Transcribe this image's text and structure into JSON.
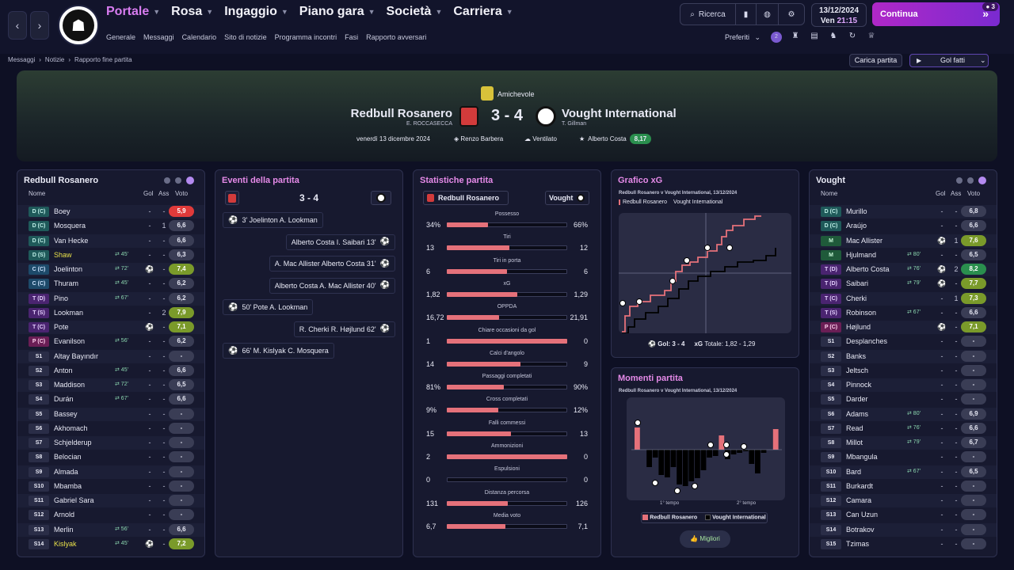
{
  "nav": {
    "main": [
      "Portale",
      "Rosa",
      "Ingaggio",
      "Piano gara",
      "Società",
      "Carriera"
    ],
    "sub": [
      "Generale",
      "Messaggi",
      "Calendario",
      "Sito di notizie",
      "Programma incontri",
      "Fasi",
      "Rapporto avversari"
    ],
    "search": "Ricerca",
    "date": "13/12/2024",
    "day": "Ven",
    "time": "21:15",
    "continue": "Continua",
    "badge": "3",
    "preferiti": "Preferiti",
    "notif": "2"
  },
  "breadcrumb": [
    "Messaggi",
    "Notizie",
    "Rapporto fine partita"
  ],
  "buttons": {
    "carica": "Carica partita",
    "gol": "Gol fatti"
  },
  "match": {
    "competition": "Amichevole",
    "home": "Redbull Rosanero",
    "home_manager": "E. ROCCASECCA",
    "score": "3 - 4",
    "away": "Vought International",
    "away_manager": "T. Gillman",
    "date": "venerdì 13 dicembre 2024",
    "stadium": "Renzo Barbera",
    "weather": "Ventilato",
    "potm": "Alberto Costa",
    "potm_rating": "8,17"
  },
  "home_panel": {
    "title": "Redbull Rosanero",
    "headers": [
      "Nome",
      "Gol",
      "Ass",
      "Voto"
    ],
    "players": [
      {
        "pos": "D (C)",
        "name": "Boey",
        "c1": "-",
        "c2": "-",
        "vote": "5,9",
        "vc": "red"
      },
      {
        "pos": "D (C)",
        "name": "Mosquera",
        "c1": "-",
        "c2": "1",
        "vote": "6,6",
        "vc": "grey"
      },
      {
        "pos": "D (C)",
        "name": "Van Hecke",
        "c1": "-",
        "c2": "-",
        "vote": "6,6",
        "vc": "grey"
      },
      {
        "pos": "D (S)",
        "name": "Shaw",
        "sub": "45'",
        "c1": "-",
        "c2": "-",
        "vote": "6,3",
        "vc": "grey",
        "yellow": true
      },
      {
        "pos": "C (C)",
        "name": "Joelinton",
        "sub": "72'",
        "c1": "⚽",
        "c2": "-",
        "vote": "7,4",
        "vc": "lgreen"
      },
      {
        "pos": "C (C)",
        "name": "Thuram",
        "sub": "45'",
        "c1": "-",
        "c2": "-",
        "vote": "6,2",
        "vc": "grey"
      },
      {
        "pos": "T (D)",
        "name": "Pino",
        "sub": "67'",
        "c1": "-",
        "c2": "-",
        "vote": "6,2",
        "vc": "grey"
      },
      {
        "pos": "T (S)",
        "name": "Lookman",
        "c1": "-",
        "c2": "2",
        "vote": "7,9",
        "vc": "lgreen"
      },
      {
        "pos": "T (C)",
        "name": "Pote",
        "c1": "⚽",
        "c2": "-",
        "vote": "7,1",
        "vc": "lgreen"
      },
      {
        "pos": "P (C)",
        "name": "Evanilson",
        "sub": "56'",
        "c1": "-",
        "c2": "-",
        "vote": "6,2",
        "vc": "grey"
      },
      {
        "pos": "S1",
        "name": "Altay Bayındır",
        "c1": "-",
        "c2": "-",
        "vote": "-",
        "vc": "grey"
      },
      {
        "pos": "S2",
        "name": "Anton",
        "sub": "45'",
        "c1": "-",
        "c2": "-",
        "vote": "6,6",
        "vc": "grey"
      },
      {
        "pos": "S3",
        "name": "Maddison",
        "sub": "72'",
        "c1": "-",
        "c2": "-",
        "vote": "6,5",
        "vc": "grey"
      },
      {
        "pos": "S4",
        "name": "Durán",
        "sub": "67'",
        "c1": "-",
        "c2": "-",
        "vote": "6,6",
        "vc": "grey"
      },
      {
        "pos": "S5",
        "name": "Bassey",
        "c1": "-",
        "c2": "-",
        "vote": "-",
        "vc": "grey"
      },
      {
        "pos": "S6",
        "name": "Akhomach",
        "c1": "-",
        "c2": "-",
        "vote": "-",
        "vc": "grey"
      },
      {
        "pos": "S7",
        "name": "Schjelderup",
        "c1": "-",
        "c2": "-",
        "vote": "-",
        "vc": "grey"
      },
      {
        "pos": "S8",
        "name": "Belocian",
        "c1": "-",
        "c2": "-",
        "vote": "-",
        "vc": "grey"
      },
      {
        "pos": "S9",
        "name": "Almada",
        "c1": "-",
        "c2": "-",
        "vote": "-",
        "vc": "grey"
      },
      {
        "pos": "S10",
        "name": "Mbamba",
        "c1": "-",
        "c2": "-",
        "vote": "-",
        "vc": "grey"
      },
      {
        "pos": "S11",
        "name": "Gabriel Sara",
        "c1": "-",
        "c2": "-",
        "vote": "-",
        "vc": "grey"
      },
      {
        "pos": "S12",
        "name": "Arnold",
        "c1": "-",
        "c2": "-",
        "vote": "-",
        "vc": "grey"
      },
      {
        "pos": "S13",
        "name": "Merlin",
        "sub": "56'",
        "c1": "-",
        "c2": "-",
        "vote": "6,6",
        "vc": "grey"
      },
      {
        "pos": "S14",
        "name": "Kislyak",
        "sub": "45'",
        "c1": "⚽",
        "c2": "-",
        "vote": "7,2",
        "vc": "lgreen",
        "yellow": true
      }
    ]
  },
  "away_panel": {
    "title": "Vought",
    "headers": [
      "Nome",
      "Gol",
      "Ass",
      "Voto"
    ],
    "players": [
      {
        "pos": "D (C)",
        "name": "Murillo",
        "c1": "-",
        "c2": "-",
        "vote": "6,8",
        "vc": "grey"
      },
      {
        "pos": "D (C)",
        "name": "Araújo",
        "c1": "-",
        "c2": "-",
        "vote": "6,6",
        "vc": "grey"
      },
      {
        "pos": "M",
        "name": "Mac Allister",
        "c1": "⚽",
        "c2": "1",
        "vote": "7,6",
        "vc": "lgreen"
      },
      {
        "pos": "M",
        "name": "Hjulmand",
        "sub": "80'",
        "c1": "-",
        "c2": "-",
        "vote": "6,5",
        "vc": "grey"
      },
      {
        "pos": "T (D)",
        "name": "Alberto Costa",
        "sub": "76'",
        "c1": "⚽",
        "c2": "2",
        "vote": "8,2",
        "vc": "green"
      },
      {
        "pos": "T (D)",
        "name": "Saibari",
        "sub": "79'",
        "c1": "⚽",
        "c2": "-",
        "vote": "7,7",
        "vc": "lgreen"
      },
      {
        "pos": "T (C)",
        "name": "Cherki",
        "c1": "-",
        "c2": "1",
        "vote": "7,3",
        "vc": "lgreen"
      },
      {
        "pos": "T (S)",
        "name": "Robinson",
        "sub": "67'",
        "c1": "-",
        "c2": "-",
        "vote": "6,6",
        "vc": "grey"
      },
      {
        "pos": "P (C)",
        "name": "Højlund",
        "c1": "⚽",
        "c2": "-",
        "vote": "7,1",
        "vc": "lgreen"
      },
      {
        "pos": "S1",
        "name": "Desplanches",
        "c1": "-",
        "c2": "-",
        "vote": "-",
        "vc": "grey"
      },
      {
        "pos": "S2",
        "name": "Banks",
        "c1": "-",
        "c2": "-",
        "vote": "-",
        "vc": "grey"
      },
      {
        "pos": "S3",
        "name": "Jeltsch",
        "c1": "-",
        "c2": "-",
        "vote": "-",
        "vc": "grey"
      },
      {
        "pos": "S4",
        "name": "Pinnock",
        "c1": "-",
        "c2": "-",
        "vote": "-",
        "vc": "grey"
      },
      {
        "pos": "S5",
        "name": "Darder",
        "c1": "-",
        "c2": "-",
        "vote": "-",
        "vc": "grey"
      },
      {
        "pos": "S6",
        "name": "Adams",
        "sub": "80'",
        "c1": "-",
        "c2": "-",
        "vote": "6,9",
        "vc": "grey"
      },
      {
        "pos": "S7",
        "name": "Read",
        "sub": "76'",
        "c1": "-",
        "c2": "-",
        "vote": "6,6",
        "vc": "grey"
      },
      {
        "pos": "S8",
        "name": "Millot",
        "sub": "79'",
        "c1": "-",
        "c2": "-",
        "vote": "6,7",
        "vc": "grey"
      },
      {
        "pos": "S9",
        "name": "Mbangula",
        "c1": "-",
        "c2": "-",
        "vote": "-",
        "vc": "grey"
      },
      {
        "pos": "S10",
        "name": "Bard",
        "sub": "67'",
        "c1": "-",
        "c2": "-",
        "vote": "6,5",
        "vc": "grey"
      },
      {
        "pos": "S11",
        "name": "Burkardt",
        "c1": "-",
        "c2": "-",
        "vote": "-",
        "vc": "grey"
      },
      {
        "pos": "S12",
        "name": "Camara",
        "c1": "-",
        "c2": "-",
        "vote": "-",
        "vc": "grey"
      },
      {
        "pos": "S13",
        "name": "Can Uzun",
        "c1": "-",
        "c2": "-",
        "vote": "-",
        "vc": "grey"
      },
      {
        "pos": "S14",
        "name": "Botrakov",
        "c1": "-",
        "c2": "-",
        "vote": "-",
        "vc": "grey"
      },
      {
        "pos": "S15",
        "name": "Tzimas",
        "c1": "-",
        "c2": "-",
        "vote": "-",
        "vc": "grey"
      }
    ]
  },
  "events": {
    "title": "Eventi della partita",
    "score": "3 - 4",
    "items": [
      {
        "side": "home",
        "text": "3'  Joelinton  A. Lookman"
      },
      {
        "side": "away",
        "text": "Alberto Costa  I. Saibari  13'"
      },
      {
        "side": "away",
        "text": "A. Mac Allister  Alberto Costa  31'"
      },
      {
        "side": "away",
        "text": "Alberto Costa  A. Mac Allister  40'"
      },
      {
        "side": "home",
        "text": "50'  Pote  A. Lookman"
      },
      {
        "side": "away",
        "text": "R. Cherki  R. Højlund  62'"
      },
      {
        "side": "home",
        "text": "66'  M. Kislyak  C. Mosquera"
      }
    ]
  },
  "stats": {
    "title": "Statistiche partita",
    "home": "Redbull Rosanero",
    "away": "Vought",
    "rows": [
      {
        "label": "Possesso",
        "h": "34%",
        "a": "66%",
        "hv": 34,
        "av": 66
      },
      {
        "label": "Tiri",
        "h": "13",
        "a": "12",
        "hv": 13,
        "av": 12
      },
      {
        "label": "Tiri in porta",
        "h": "6",
        "a": "6",
        "hv": 6,
        "av": 6
      },
      {
        "label": "xG",
        "h": "1,82",
        "a": "1,29",
        "hv": 1.82,
        "av": 1.29
      },
      {
        "label": "OPPDA",
        "h": "16,72",
        "a": "21,91",
        "hv": 16.72,
        "av": 21.91
      },
      {
        "label": "Chiare occasioni da gol",
        "h": "1",
        "a": "0",
        "hv": 1,
        "av": 0
      },
      {
        "label": "Calci d'angolo",
        "h": "14",
        "a": "9",
        "hv": 14,
        "av": 9
      },
      {
        "label": "Passaggi completati",
        "h": "81%",
        "a": "90%",
        "hv": 81,
        "av": 90
      },
      {
        "label": "Cross completati",
        "h": "9%",
        "a": "12%",
        "hv": 9,
        "av": 12
      },
      {
        "label": "Falli commessi",
        "h": "15",
        "a": "13",
        "hv": 15,
        "av": 13
      },
      {
        "label": "Ammonizioni",
        "h": "2",
        "a": "0",
        "hv": 2,
        "av": 0
      },
      {
        "label": "Espulsioni",
        "h": "0",
        "a": "0",
        "hv": 0,
        "av": 0
      },
      {
        "label": "Distanza percorsa",
        "h": "131",
        "a": "126",
        "hv": 131,
        "av": 126
      },
      {
        "label": "Media voto",
        "h": "6,7",
        "a": "7,1",
        "hv": 6.7,
        "av": 7.1
      }
    ]
  },
  "xg": {
    "title": "Grafico xG",
    "subtitle": "Redbull Rosanero v Vought International, 13/12/2024",
    "tabs": [
      "Redbull Rosanero",
      "Vought International"
    ],
    "footer_gol": "Gol: 3 - 4",
    "footer_xg": "xG",
    "footer_tot": "Totale: 1,82 - 1,29"
  },
  "momenti": {
    "title": "Momenti partita",
    "subtitle": "Redbull Rosanero v Vought International, 13/12/2024",
    "t1": "1° tempo",
    "t2": "2° tempo",
    "legend_home": "Redbull Rosanero",
    "legend_away": "Vought International",
    "button": "Migliori"
  },
  "colors": {
    "accent": "#b028c8",
    "home": "#e5717a",
    "away": "#000000"
  }
}
